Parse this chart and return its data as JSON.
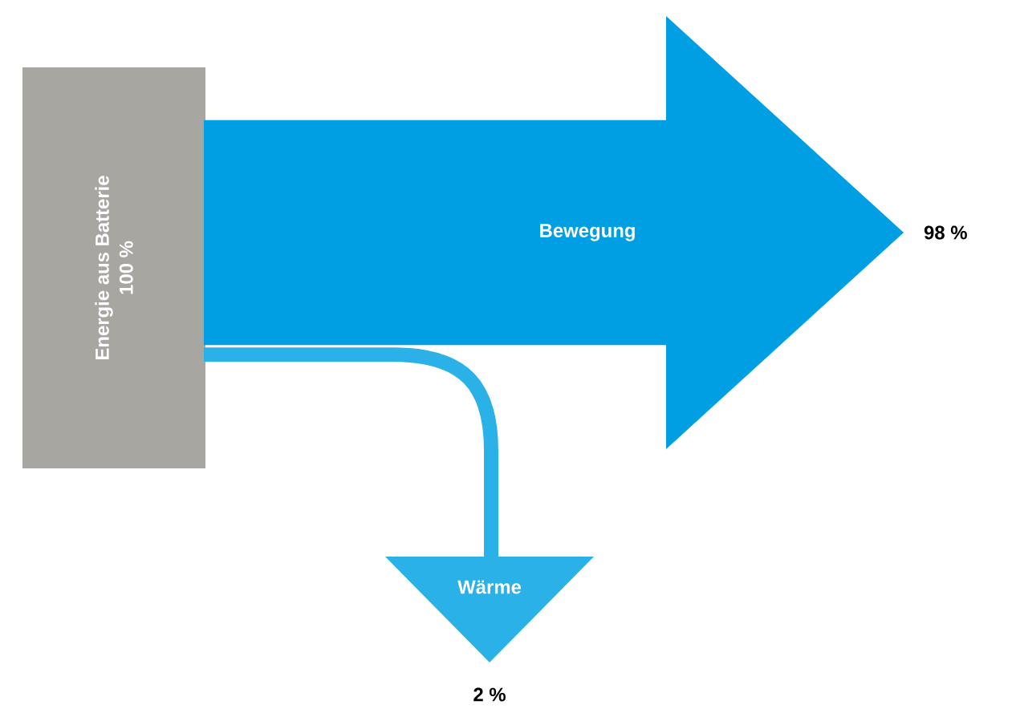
{
  "chart_data": {
    "type": "other",
    "categories": [
      "Energie aus Batterie",
      "Bewegung",
      "Wärme"
    ],
    "values": [
      100,
      98,
      2
    ],
    "value_labels": [
      "100 %",
      "98 %",
      "2 %"
    ],
    "colors": [
      "#a7a6a1",
      "#009fe3",
      "#29b1e8"
    ]
  }
}
